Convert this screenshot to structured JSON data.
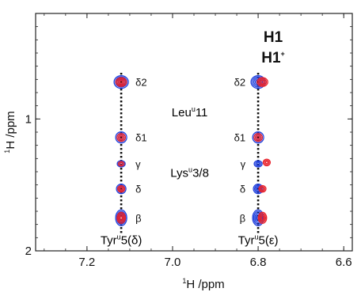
{
  "chart_data": {
    "type": "scatter",
    "subtype": "2D NMR contour spectrum (TOCSY-style overlay)",
    "xlabel": "1H /ppm",
    "ylabel": "1H /ppm",
    "xlim": [
      7.32,
      6.58
    ],
    "ylim": [
      0.2,
      2.0
    ],
    "x_reversed": true,
    "y_reversed": true,
    "x_ticks": [
      "7.2",
      "7.0",
      "6.8",
      "6.6"
    ],
    "y_ticks": [
      "1",
      "2"
    ],
    "grid": false,
    "legend": {
      "position": "top-right",
      "entries": [
        {
          "name": "H1",
          "color": "#1f3fdc"
        },
        {
          "name": "H1",
          "superscript": "+",
          "color": "#e8222b"
        }
      ]
    },
    "colors": {
      "H1": "#1f3fdc",
      "H1plus": "#e8222b"
    },
    "strips": [
      {
        "label": "Tyr",
        "label_sup": "u",
        "label_tail": "5(δ)",
        "x": 7.12
      },
      {
        "label": "Tyr",
        "label_sup": "u",
        "label_tail": "5(ε)",
        "x": 6.8
      }
    ],
    "peaks": [
      {
        "name": "δ2",
        "y": 0.72
      },
      {
        "name": "δ1",
        "y": 1.14
      },
      {
        "name": "γ",
        "y": 1.34
      },
      {
        "name": "δ",
        "y": 1.53
      },
      {
        "name": "β",
        "y": 1.75
      }
    ],
    "series": [
      {
        "name": "H1",
        "points": [
          {
            "x": 7.12,
            "y": 0.72
          },
          {
            "x": 7.12,
            "y": 1.14
          },
          {
            "x": 7.12,
            "y": 1.34
          },
          {
            "x": 7.12,
            "y": 1.53
          },
          {
            "x": 7.12,
            "y": 1.75
          },
          {
            "x": 6.8,
            "y": 0.72
          },
          {
            "x": 6.8,
            "y": 1.14
          },
          {
            "x": 6.8,
            "y": 1.34
          },
          {
            "x": 6.8,
            "y": 1.53
          },
          {
            "x": 6.8,
            "y": 1.75
          }
        ]
      },
      {
        "name": "H1+",
        "points": [
          {
            "x": 7.12,
            "y": 0.72
          },
          {
            "x": 7.12,
            "y": 1.14
          },
          {
            "x": 7.12,
            "y": 1.34
          },
          {
            "x": 7.12,
            "y": 1.53
          },
          {
            "x": 7.12,
            "y": 1.75
          },
          {
            "x": 6.79,
            "y": 0.72
          },
          {
            "x": 6.8,
            "y": 1.14
          },
          {
            "x": 6.78,
            "y": 1.33
          },
          {
            "x": 6.79,
            "y": 1.53
          },
          {
            "x": 6.79,
            "y": 1.75
          }
        ]
      }
    ],
    "annotations": [
      {
        "text": "Leu",
        "sup": "u",
        "tail": "11",
        "x": 6.96,
        "y": 0.98
      },
      {
        "text": "Lys",
        "sup": "u",
        "tail": "3/8",
        "x": 6.96,
        "y": 1.44
      }
    ]
  }
}
